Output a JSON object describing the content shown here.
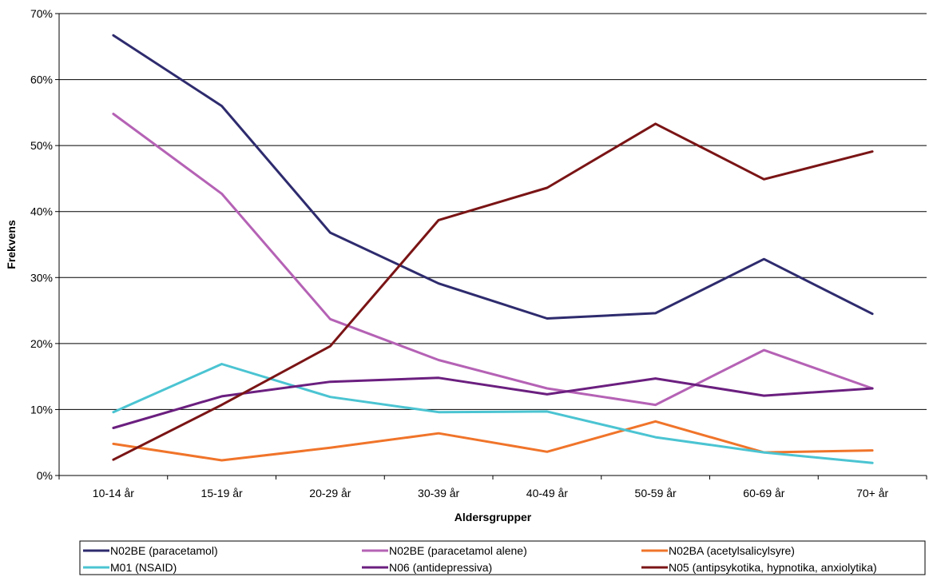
{
  "chart_data": {
    "type": "line",
    "title": "",
    "xlabel": "Aldersgrupper",
    "ylabel": "Frekvens",
    "categories": [
      "10-14 år",
      "15-19 år",
      "20-29 år",
      "30-39 år",
      "40-49 år",
      "50-59 år",
      "60-69 år",
      "70+ år"
    ],
    "ylim": [
      0,
      70
    ],
    "yticks": [
      0,
      10,
      20,
      30,
      40,
      50,
      60,
      70
    ],
    "ytick_labels": [
      "0%",
      "10%",
      "20%",
      "30%",
      "40%",
      "50%",
      "60%",
      "70%"
    ],
    "grid": true,
    "legend_position": "bottom",
    "series": [
      {
        "name": "N02BE (paracetamol)",
        "color": "#2e2b6e",
        "values": [
          66.7,
          56.0,
          36.8,
          29.1,
          23.8,
          24.6,
          32.8,
          24.5
        ]
      },
      {
        "name": "N02BE (paracetamol alene)",
        "color": "#b562b5",
        "values": [
          54.8,
          42.7,
          23.7,
          17.5,
          13.2,
          10.7,
          19.0,
          13.2
        ]
      },
      {
        "name": "N02BA (acetylsalicylsyre)",
        "color": "#f0742a",
        "values": [
          4.8,
          2.3,
          4.2,
          6.4,
          3.6,
          8.2,
          3.5,
          3.8
        ]
      },
      {
        "name": "M01 (NSAID)",
        "color": "#4bc4d2",
        "values": [
          9.6,
          16.9,
          11.9,
          9.6,
          9.7,
          5.8,
          3.5,
          1.9
        ]
      },
      {
        "name": "N06 (antidepressiva)",
        "color": "#6b1f7f",
        "values": [
          7.2,
          12.0,
          14.2,
          14.8,
          12.3,
          14.7,
          12.1,
          13.2
        ]
      },
      {
        "name": "N05 (antipsykotika, hypnotika, anxiolytika)",
        "color": "#7a1415",
        "values": [
          2.4,
          10.7,
          19.6,
          38.7,
          43.6,
          53.3,
          44.9,
          49.1
        ]
      }
    ]
  }
}
